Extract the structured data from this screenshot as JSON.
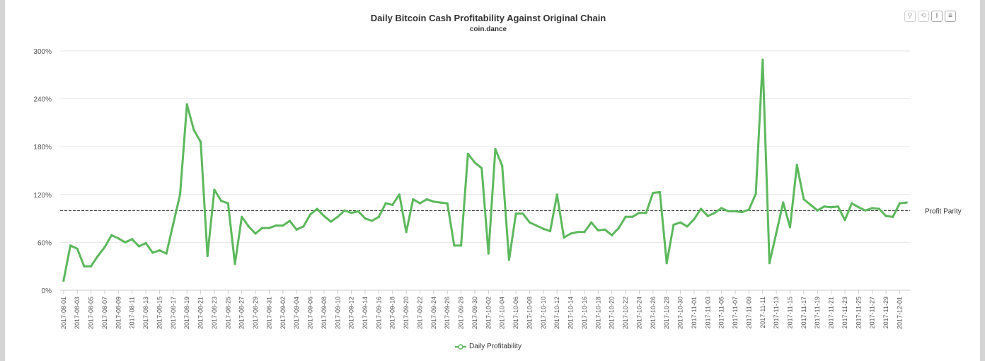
{
  "chart_data": {
    "type": "line",
    "title": "Daily Bitcoin Cash Profitability Against Original Chain",
    "subtitle": "coin.dance",
    "ylim": [
      0,
      300
    ],
    "y_ticks": [
      0,
      60,
      120,
      180,
      240,
      300
    ],
    "y_tick_labels": [
      "0%",
      "60%",
      "120%",
      "180%",
      "240%",
      "300%"
    ],
    "grid": true,
    "legend_position": "bottom-center",
    "reference_line": {
      "value": 100,
      "label": "Profit Parity"
    },
    "x": [
      "2017-08-01",
      "2017-08-02",
      "2017-08-03",
      "2017-08-04",
      "2017-08-05",
      "2017-08-06",
      "2017-08-07",
      "2017-08-08",
      "2017-08-09",
      "2017-08-10",
      "2017-08-11",
      "2017-08-12",
      "2017-08-13",
      "2017-08-14",
      "2017-08-15",
      "2017-08-16",
      "2017-08-17",
      "2017-08-18",
      "2017-08-19",
      "2017-08-20",
      "2017-08-21",
      "2017-08-22",
      "2017-08-23",
      "2017-08-24",
      "2017-08-25",
      "2017-08-26",
      "2017-08-27",
      "2017-08-28",
      "2017-08-29",
      "2017-08-30",
      "2017-08-31",
      "2017-09-01",
      "2017-09-02",
      "2017-09-03",
      "2017-09-04",
      "2017-09-05",
      "2017-09-06",
      "2017-09-07",
      "2017-09-08",
      "2017-09-09",
      "2017-09-10",
      "2017-09-11",
      "2017-09-12",
      "2017-09-13",
      "2017-09-14",
      "2017-09-15",
      "2017-09-16",
      "2017-09-17",
      "2017-09-18",
      "2017-09-19",
      "2017-09-20",
      "2017-09-21",
      "2017-09-22",
      "2017-09-23",
      "2017-09-24",
      "2017-09-25",
      "2017-09-26",
      "2017-09-27",
      "2017-09-28",
      "2017-09-29",
      "2017-09-30",
      "2017-10-01",
      "2017-10-02",
      "2017-10-03",
      "2017-10-04",
      "2017-10-05",
      "2017-10-06",
      "2017-10-07",
      "2017-10-08",
      "2017-10-09",
      "2017-10-10",
      "2017-10-11",
      "2017-10-12",
      "2017-10-13",
      "2017-10-14",
      "2017-10-15",
      "2017-10-16",
      "2017-10-17",
      "2017-10-18",
      "2017-10-19",
      "2017-10-20",
      "2017-10-21",
      "2017-10-22",
      "2017-10-23",
      "2017-10-24",
      "2017-10-25",
      "2017-10-26",
      "2017-10-27",
      "2017-10-28",
      "2017-10-29",
      "2017-10-30",
      "2017-10-31",
      "2017-11-01",
      "2017-11-02",
      "2017-11-03",
      "2017-11-04",
      "2017-11-05",
      "2017-11-06",
      "2017-11-07",
      "2017-11-08",
      "2017-11-09",
      "2017-11-10",
      "2017-11-11",
      "2017-11-12",
      "2017-11-13",
      "2017-11-14",
      "2017-11-15",
      "2017-11-16",
      "2017-11-17",
      "2017-11-18",
      "2017-11-19",
      "2017-11-20",
      "2017-11-21",
      "2017-11-22",
      "2017-11-23",
      "2017-11-24",
      "2017-11-25",
      "2017-11-26",
      "2017-11-27",
      "2017-11-28",
      "2017-11-29",
      "2017-11-30",
      "2017-12-01",
      "2017-12-02"
    ],
    "x_tick_labels": [
      "2017-08-01",
      "2017-08-03",
      "2017-08-05",
      "2017-08-07",
      "2017-08-09",
      "2017-08-11",
      "2017-08-13",
      "2017-08-15",
      "2017-08-17",
      "2017-08-19",
      "2017-08-21",
      "2017-08-23",
      "2017-08-25",
      "2017-08-27",
      "2017-08-29",
      "2017-08-31",
      "2017-09-02",
      "2017-09-04",
      "2017-09-06",
      "2017-09-08",
      "2017-09-10",
      "2017-09-12",
      "2017-09-14",
      "2017-09-16",
      "2017-09-18",
      "2017-09-20",
      "2017-09-22",
      "2017-09-24",
      "2017-09-26",
      "2017-09-28",
      "2017-09-30",
      "2017-10-02",
      "2017-10-04",
      "2017-10-06",
      "2017-10-08",
      "2017-10-10",
      "2017-10-12",
      "2017-10-14",
      "2017-10-16",
      "2017-10-18",
      "2017-10-20",
      "2017-10-22",
      "2017-10-24",
      "2017-10-26",
      "2017-10-28",
      "2017-10-30",
      "2017-11-01",
      "2017-11-03",
      "2017-11-05",
      "2017-11-07",
      "2017-11-09",
      "2017-11-11",
      "2017-11-13",
      "2017-11-15",
      "2017-11-17",
      "2017-11-19",
      "2017-11-21",
      "2017-11-23",
      "2017-11-25",
      "2017-11-27",
      "2017-11-29",
      "2017-12-01"
    ],
    "series": [
      {
        "name": "Daily Profitability",
        "color": "#5cb85c",
        "values": [
          12,
          56,
          52,
          30,
          30,
          43,
          54,
          69,
          65,
          60,
          64,
          55,
          59,
          47,
          50,
          46,
          83,
          120,
          233,
          201,
          186,
          43,
          126,
          112,
          109,
          33,
          92,
          80,
          71,
          78,
          78,
          81,
          81,
          87,
          76,
          80,
          95,
          102,
          93,
          86,
          92,
          100,
          97,
          99,
          90,
          87,
          92,
          109,
          107,
          120,
          73,
          114,
          109,
          114,
          111,
          110,
          109,
          56,
          56,
          171,
          160,
          153,
          46,
          177,
          156,
          38,
          96,
          96,
          85,
          81,
          77,
          74,
          120,
          66,
          71,
          73,
          73,
          85,
          75,
          76,
          69,
          78,
          92,
          92,
          97,
          97,
          122,
          123,
          34,
          82,
          85,
          80,
          89,
          102,
          93,
          97,
          103,
          99,
          99,
          98,
          101,
          121,
          289,
          34,
          72,
          110,
          79,
          157,
          114,
          107,
          100,
          105,
          104,
          105,
          88,
          109,
          104,
          100,
          103,
          102,
          93,
          92,
          109,
          110
        ]
      }
    ]
  },
  "toolbar": {
    "buttons": [
      {
        "icon": "zoom-icon",
        "glyph": "⚲"
      },
      {
        "icon": "reset-icon",
        "glyph": "⟲"
      },
      {
        "icon": "pan-icon",
        "glyph": "Ⅰ"
      },
      {
        "icon": "menu-icon",
        "glyph": "≡"
      }
    ]
  }
}
